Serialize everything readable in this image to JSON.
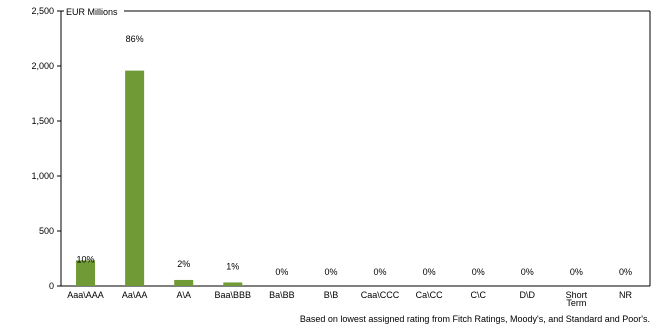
{
  "chart_data": {
    "type": "bar",
    "unit_label": "EUR Millions",
    "categories": [
      "Aaa\\AAA",
      "Aa\\AA",
      "A\\A",
      "Baa\\BBB",
      "Ba\\BB",
      "B\\B",
      "Caa\\CCC",
      "Ca\\CC",
      "C\\C",
      "D\\D",
      "Short Term",
      "NR"
    ],
    "values": [
      233,
      1958,
      55,
      32,
      0,
      0,
      0,
      0,
      0,
      0,
      0,
      0
    ],
    "data_labels": [
      "10%",
      "86%",
      "2%",
      "1%",
      "0%",
      "0%",
      "0%",
      "0%",
      "0%",
      "0%",
      "0%",
      "0%"
    ],
    "ylim": [
      0,
      2500
    ],
    "yticks": [
      0,
      500,
      1000,
      1500,
      2000,
      2500
    ],
    "ytick_labels": [
      "0",
      "500",
      "1,000",
      "1,500",
      "2,000",
      "2,500"
    ],
    "bar_color": "#6f9a35",
    "grid": false,
    "footnote": "Based on lowest assigned rating from Fitch Ratings, Moody's, and Standard and Poor's."
  }
}
